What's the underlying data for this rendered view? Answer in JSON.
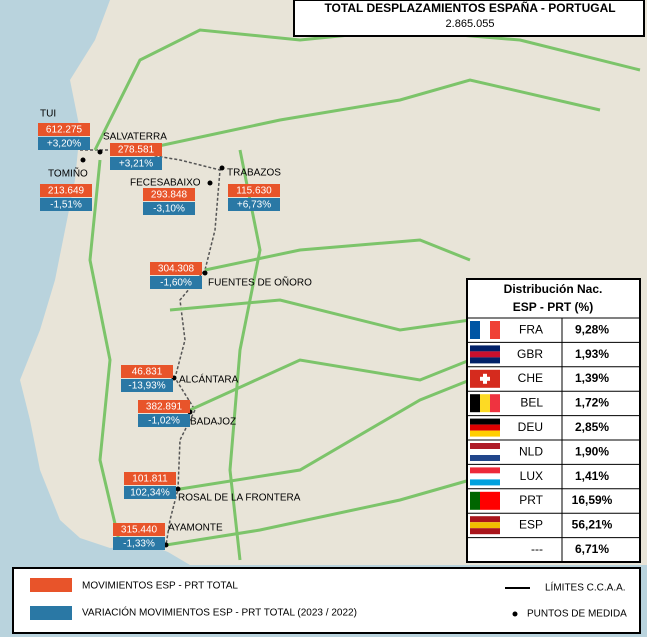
{
  "header": {
    "title": "TOTAL DESPLAZAMIENTOS ESPAÑA - PORTUGAL",
    "total": "2.865.055"
  },
  "crossings": [
    {
      "name": "TUI",
      "movements": "612.275",
      "change": "+3,20%"
    },
    {
      "name": "SALVATERRA",
      "movements": "278.581",
      "change": "+3,21%"
    },
    {
      "name": "TOMIÑO",
      "movements": "213.649",
      "change": "-1,51%"
    },
    {
      "name": "FECESABAIXO",
      "movements": "293.848",
      "change": "-3,10%"
    },
    {
      "name": "TRABAZOS",
      "movements": "115.630",
      "change": "+6,73%"
    },
    {
      "name": "FUENTES DE OÑORO",
      "movements": "304.308",
      "change": "-1,60%"
    },
    {
      "name": "ALCÁNTARA",
      "movements": "46.831",
      "change": "-13,93%"
    },
    {
      "name": "BADAJOZ",
      "movements": "382.891",
      "change": "-1,02%"
    },
    {
      "name": "ROSAL DE LA FRONTERA",
      "movements": "101.811",
      "change": "102,34%"
    },
    {
      "name": "AYAMONTE",
      "movements": "315.440",
      "change": "-1,33%"
    }
  ],
  "table": {
    "title": "Distribución Nac.",
    "subtitle": "ESP - PRT (%)",
    "rows": [
      [
        "FRA",
        "9,28%"
      ],
      [
        "GBR",
        "1,93%"
      ],
      [
        "CHE",
        "1,39%"
      ],
      [
        "BEL",
        "1,72%"
      ],
      [
        "DEU",
        "2,85%"
      ],
      [
        "NLD",
        "1,90%"
      ],
      [
        "LUX",
        "1,41%"
      ],
      [
        "PRT",
        "16,59%"
      ],
      [
        "ESP",
        "56,21%"
      ],
      [
        "---",
        "6,71%"
      ]
    ]
  },
  "legend": {
    "movements": "MOVIMIENTOS ESP - PRT TOTAL",
    "variation": "VARIACIÓN MOVIMIENTOS ESP - PRT TOTAL (2023 / 2022)",
    "borders": "LÍMITES C.C.A.A.",
    "points": "PUNTOS DE MEDIDA"
  }
}
